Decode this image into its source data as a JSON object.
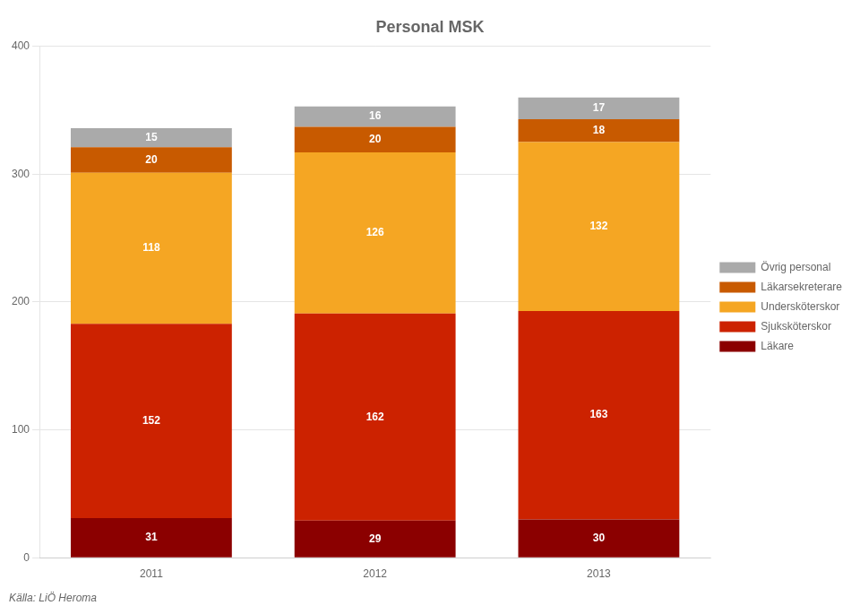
{
  "chart_data": {
    "type": "bar",
    "title": "Personal MSK",
    "categories": [
      "2011",
      "2012",
      "2013"
    ],
    "series": [
      {
        "name": "Läkare",
        "color": "#8B0000",
        "values": [
          31,
          29,
          30
        ]
      },
      {
        "name": "Sjuksköterskor",
        "color": "#CC2200",
        "values": [
          152,
          162,
          163
        ]
      },
      {
        "name": "Undersköterskor",
        "color": "#F5A623",
        "values": [
          118,
          126,
          132
        ]
      },
      {
        "name": "Läkarsekreterare",
        "color": "#C85A00",
        "values": [
          20,
          20,
          18
        ]
      },
      {
        "name": "Övrig personal",
        "color": "#AAAAAA",
        "values": [
          15,
          16,
          17
        ]
      }
    ],
    "stacked": true,
    "ylim": [
      0,
      400
    ],
    "yticks": [
      0,
      100,
      200,
      300,
      400
    ],
    "grid": true,
    "legend": "right",
    "data_labels": true,
    "annotations": [
      "Källa: LiÖ Heroma"
    ]
  }
}
